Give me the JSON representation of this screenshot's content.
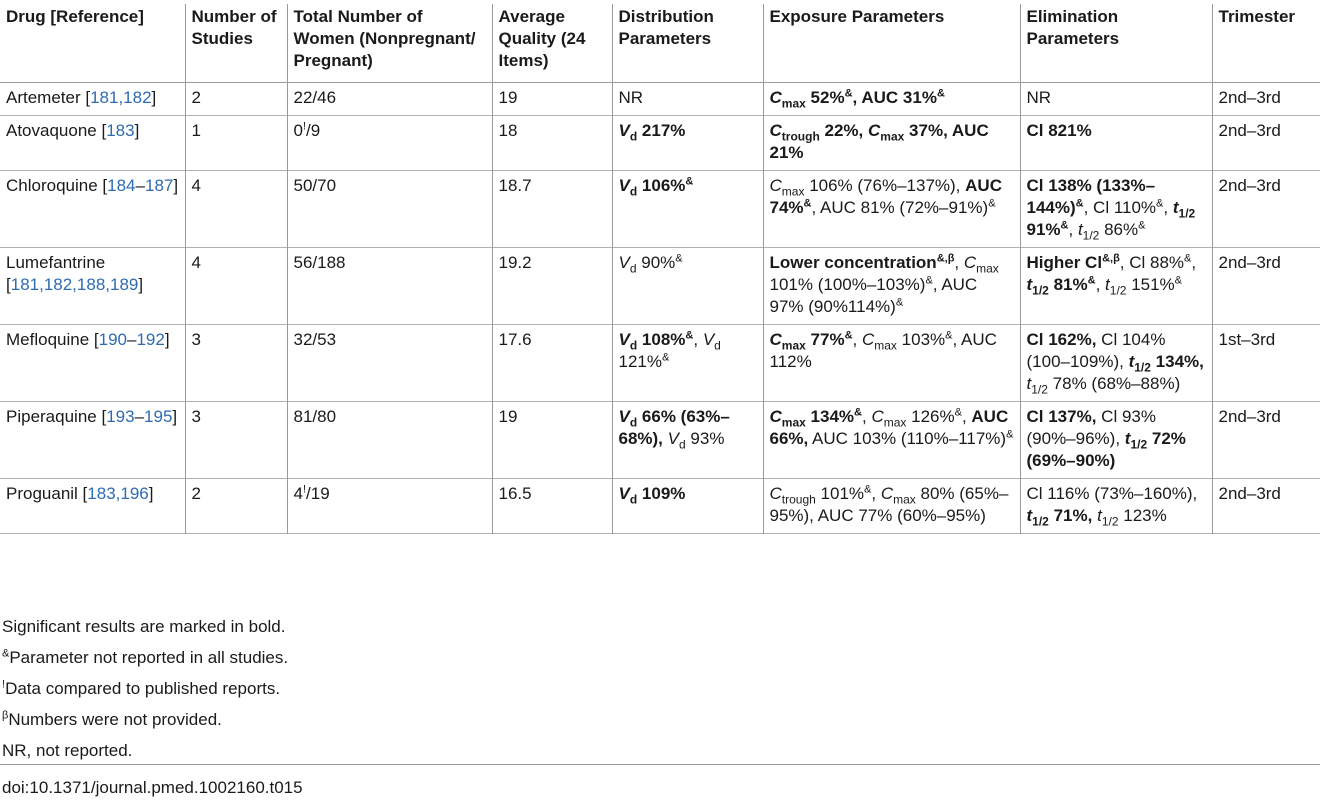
{
  "table": {
    "headers": [
      "Drug [Reference]",
      "Number of Studies",
      "Total Number of Women (Nonpregnant/ Pregnant)",
      "Average Quality (24 Items)",
      "Distribution Parameters",
      "Exposure Parameters",
      "Elimination Parameters",
      "Trimester"
    ],
    "rows": [
      {
        "drug": "Artemeter",
        "refs": "181,182",
        "studies": "2",
        "women": "22/46",
        "quality": "19",
        "distribution": "NR",
        "exposure_a": "52%",
        "exposure_b": "AUC 31%",
        "elimination": "NR",
        "trimester": "2nd–3rd"
      },
      {
        "drug": "Atovaquone",
        "refs": "183",
        "studies": "1",
        "women_a": "0",
        "women_b": "/9",
        "quality": "18",
        "distribution": "217%",
        "exposure_a": "22%,",
        "exposure_b": "37%,",
        "exposure_c": "AUC 21%",
        "elimination": "Cl 821%",
        "trimester": "2nd–3rd"
      },
      {
        "drug": "Chloroquine",
        "refs_a": "184",
        "refs_b": "187",
        "studies": "4",
        "women": "50/70",
        "quality": "18.7",
        "distribution": "106%",
        "exposure_a": "106% (76%–137%),",
        "exposure_b": "AUC 74%",
        "exposure_c": "AUC 81% (72%–91%)",
        "elimination_a": "Cl 138% (133%–144%)",
        "elimination_b": "Cl 110%",
        "elimination_c": "91%",
        "elimination_d": "86%",
        "trimester": "2nd–3rd"
      },
      {
        "drug": "Lumefantrine",
        "refs": "181,182,188,189",
        "studies": "4",
        "women": "56/188",
        "quality": "19.2",
        "distribution": "90%",
        "exposure_a": "Lower concentration",
        "exposure_b": "101% (100%–103%)",
        "exposure_c": "AUC 97% (90%114%)",
        "elimination_a": "Higher Cl",
        "elimination_b": "Cl 88%",
        "elimination_c": "81%",
        "elimination_d": "151%",
        "trimester": "2nd–3rd"
      },
      {
        "drug": "Mefloquine",
        "refs_a": "190",
        "refs_b": "192",
        "studies": "3",
        "women": "32/53",
        "quality": "17.6",
        "distribution_a": "108%",
        "distribution_b": "121%",
        "exposure_a": "77%",
        "exposure_b": "103%",
        "exposure_c": "AUC 112%",
        "elimination_a": "Cl 162%,",
        "elimination_b": "Cl 104% (100–109%),",
        "elimination_c": "134%,",
        "elimination_d": "78% (68%–88%)",
        "trimester": "1st–3rd"
      },
      {
        "drug": "Piperaquine",
        "refs_a": "193",
        "refs_b": "195",
        "studies": "3",
        "women": "81/80",
        "quality": "19",
        "distribution_a": "66% (63%–68%),",
        "distribution_b": "93%",
        "exposure_a": "134%",
        "exposure_b": "126%",
        "exposure_c": "AUC 66%,",
        "exposure_d": "AUC 103% (110%–117%)",
        "elimination_a": "Cl 137%,",
        "elimination_b": "Cl 93% (90%–96%),",
        "elimination_c": "72% (69%–90%)",
        "trimester": "2nd–3rd"
      },
      {
        "drug": "Proguanil",
        "refs": "183,196",
        "studies": "2",
        "women_a": "4",
        "women_b": "/19",
        "quality": "16.5",
        "distribution": "109%",
        "exposure_a": "101%",
        "exposure_b": "80% (65%–95%),",
        "exposure_c": "AUC 77% (60%–95%)",
        "elimination_a": "Cl 116% (73%–160%),",
        "elimination_b": "71%,",
        "elimination_c": "123%",
        "trimester": "2nd–3rd"
      }
    ]
  },
  "symbols": {
    "amp": "&",
    "excl": "!",
    "beta": "β",
    "V": "V",
    "d": "d",
    "C": "C",
    "max": "max",
    "trough": "trough",
    "t": "t",
    "half": "1/2",
    "comma": ",",
    "amp_beta": "&,β"
  },
  "footnotes": {
    "bold_note": "Significant results are marked in bold.",
    "amp_note": "Parameter not reported in all studies.",
    "excl_note": "Data compared to published reports.",
    "beta_note": "Numbers were not provided.",
    "nr_note": "NR, not reported."
  },
  "doi": "doi:10.1371/journal.pmed.1002160.t015"
}
